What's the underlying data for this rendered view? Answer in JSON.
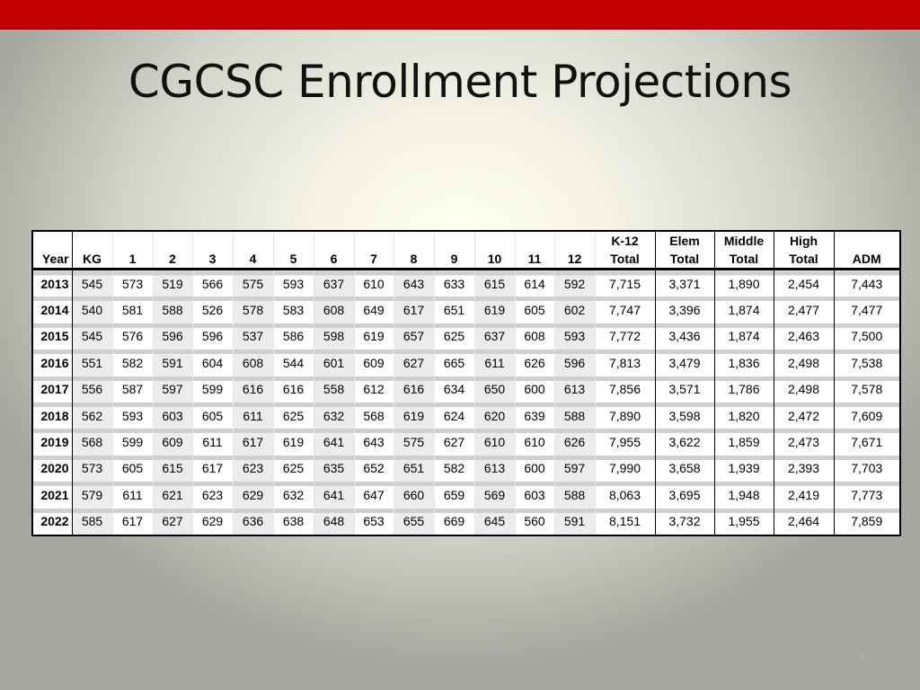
{
  "slide": {
    "title": "CGCSC Enrollment Projections",
    "page_number": "7"
  },
  "table": {
    "header_top": [
      "",
      "",
      "",
      "",
      "",
      "",
      "",
      "",
      "",
      "",
      "",
      "",
      "",
      "",
      "K-12",
      "Elem",
      "Middle",
      "High",
      ""
    ],
    "header_bottom": [
      "Year",
      "KG",
      "1",
      "2",
      "3",
      "4",
      "5",
      "6",
      "7",
      "8",
      "9",
      "10",
      "11",
      "12",
      "Total",
      "Total",
      "Total",
      "Total",
      "ADM"
    ],
    "rows": [
      [
        "2013",
        "545",
        "573",
        "519",
        "566",
        "575",
        "593",
        "637",
        "610",
        "643",
        "633",
        "615",
        "614",
        "592",
        "7,715",
        "3,371",
        "1,890",
        "2,454",
        "7,443"
      ],
      [
        "2014",
        "540",
        "581",
        "588",
        "526",
        "578",
        "583",
        "608",
        "649",
        "617",
        "651",
        "619",
        "605",
        "602",
        "7,747",
        "3,396",
        "1,874",
        "2,477",
        "7,477"
      ],
      [
        "2015",
        "545",
        "576",
        "596",
        "596",
        "537",
        "586",
        "598",
        "619",
        "657",
        "625",
        "637",
        "608",
        "593",
        "7,772",
        "3,436",
        "1,874",
        "2,463",
        "7,500"
      ],
      [
        "2016",
        "551",
        "582",
        "591",
        "604",
        "608",
        "544",
        "601",
        "609",
        "627",
        "665",
        "611",
        "626",
        "596",
        "7,813",
        "3,479",
        "1,836",
        "2,498",
        "7,538"
      ],
      [
        "2017",
        "556",
        "587",
        "597",
        "599",
        "616",
        "616",
        "558",
        "612",
        "616",
        "634",
        "650",
        "600",
        "613",
        "7,856",
        "3,571",
        "1,786",
        "2,498",
        "7,578"
      ],
      [
        "2018",
        "562",
        "593",
        "603",
        "605",
        "611",
        "625",
        "632",
        "568",
        "619",
        "624",
        "620",
        "639",
        "588",
        "7,890",
        "3,598",
        "1,820",
        "2,472",
        "7,609"
      ],
      [
        "2019",
        "568",
        "599",
        "609",
        "611",
        "617",
        "619",
        "641",
        "643",
        "575",
        "627",
        "610",
        "610",
        "626",
        "7,955",
        "3,622",
        "1,859",
        "2,473",
        "7,671"
      ],
      [
        "2020",
        "573",
        "605",
        "615",
        "617",
        "623",
        "625",
        "635",
        "652",
        "651",
        "582",
        "613",
        "600",
        "597",
        "7,990",
        "3,658",
        "1,939",
        "2,393",
        "7,703"
      ],
      [
        "2021",
        "579",
        "611",
        "621",
        "623",
        "629",
        "632",
        "641",
        "647",
        "660",
        "659",
        "569",
        "603",
        "588",
        "8,063",
        "3,695",
        "1,948",
        "2,419",
        "7,773"
      ],
      [
        "2022",
        "585",
        "617",
        "627",
        "629",
        "636",
        "638",
        "648",
        "653",
        "655",
        "669",
        "645",
        "560",
        "591",
        "8,151",
        "3,732",
        "1,955",
        "2,464",
        "7,859"
      ]
    ]
  },
  "colors": {
    "top_bar": "#c20000",
    "title_text": "#111111"
  }
}
